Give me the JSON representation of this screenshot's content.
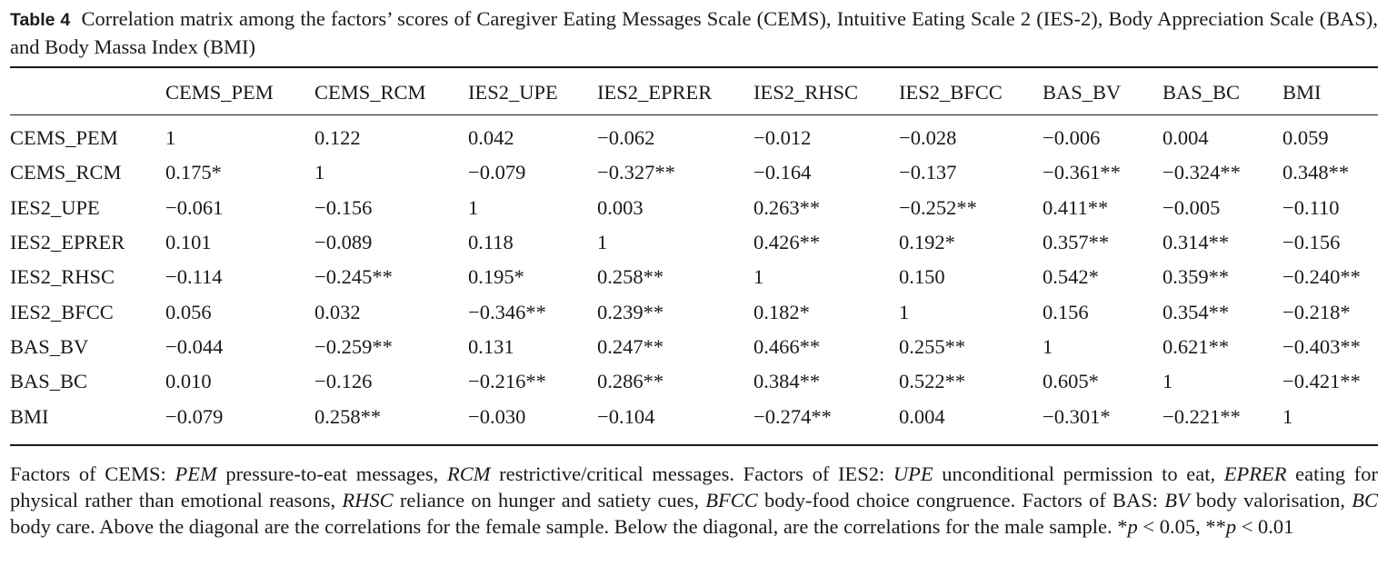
{
  "caption": {
    "label": "Table 4",
    "text": "Correlation matrix among the factors’ scores of Caregiver Eating Messages Scale (CEMS), Intuitive Eating Scale 2 (IES-2), Body Appreciation Scale (BAS), and Body Massa Index (BMI)"
  },
  "table": {
    "columns": [
      "",
      "CEMS_PEM",
      "CEMS_RCM",
      "IES2_UPE",
      "IES2_EPRER",
      "IES2_RHSC",
      "IES2_BFCC",
      "BAS_BV",
      "BAS_BC",
      "BMI"
    ],
    "rows": [
      {
        "label": "CEMS_PEM",
        "values": [
          "1",
          "0.122",
          "0.042",
          "−0.062",
          "−0.012",
          "−0.028",
          "−0.006",
          "0.004",
          "0.059"
        ]
      },
      {
        "label": "CEMS_RCM",
        "values": [
          "0.175*",
          "1",
          "−0.079",
          "−0.327**",
          "−0.164",
          "−0.137",
          "−0.361**",
          "−0.324**",
          "0.348**"
        ]
      },
      {
        "label": "IES2_UPE",
        "values": [
          "−0.061",
          "−0.156",
          "1",
          "0.003",
          "0.263**",
          "−0.252**",
          "0.411**",
          "−0.005",
          "−0.110"
        ]
      },
      {
        "label": "IES2_EPRER",
        "values": [
          "0.101",
          "−0.089",
          "0.118",
          "1",
          "0.426**",
          "0.192*",
          "0.357**",
          "0.314**",
          "−0.156"
        ]
      },
      {
        "label": "IES2_RHSC",
        "values": [
          "−0.114",
          "−0.245**",
          "0.195*",
          "0.258**",
          "1",
          "0.150",
          "0.542*",
          "0.359**",
          "−0.240**"
        ]
      },
      {
        "label": "IES2_BFCC",
        "values": [
          "0.056",
          "0.032",
          "−0.346**",
          "0.239**",
          "0.182*",
          "1",
          "0.156",
          "0.354**",
          "−0.218*"
        ]
      },
      {
        "label": "BAS_BV",
        "values": [
          "−0.044",
          "−0.259**",
          "0.131",
          "0.247**",
          "0.466**",
          "0.255**",
          "1",
          "0.621**",
          "−0.403**"
        ]
      },
      {
        "label": "BAS_BC",
        "values": [
          "0.010",
          "−0.126",
          "−0.216**",
          "0.286**",
          "0.384**",
          "0.522**",
          "0.605*",
          "1",
          "−0.421**"
        ]
      },
      {
        "label": "BMI",
        "values": [
          "−0.079",
          "0.258**",
          "−0.030",
          "−0.104",
          "−0.274**",
          "0.004",
          "−0.301*",
          "−0.221**",
          "1"
        ]
      }
    ]
  },
  "footnote": {
    "t01": "Factors of CEMS: ",
    "i01": "PEM",
    "t02": " pressure-to-eat messages, ",
    "i02": "RCM",
    "t03": " restrictive/critical messages. Factors of IES2: ",
    "i03": "UPE",
    "t04": " unconditional permission to eat, ",
    "i04": "EPRER",
    "t05": " eating for physical rather than emotional reasons, ",
    "i05": "RHSC",
    "t06": " reliance on hunger and satiety cues, ",
    "i06": "BFCC",
    "t07": " body-food choice congruence. Factors of BAS: ",
    "i07": "BV",
    "t08": " body valorisation, ",
    "i08": "BC",
    "t09": " body care. Above the diagonal are the correlations for the female sample. Below the diagonal, are the correlations for the male sample. *",
    "i09": "p",
    "t10": " < 0.05, **",
    "i10": "p",
    "t11": " < 0.01"
  }
}
